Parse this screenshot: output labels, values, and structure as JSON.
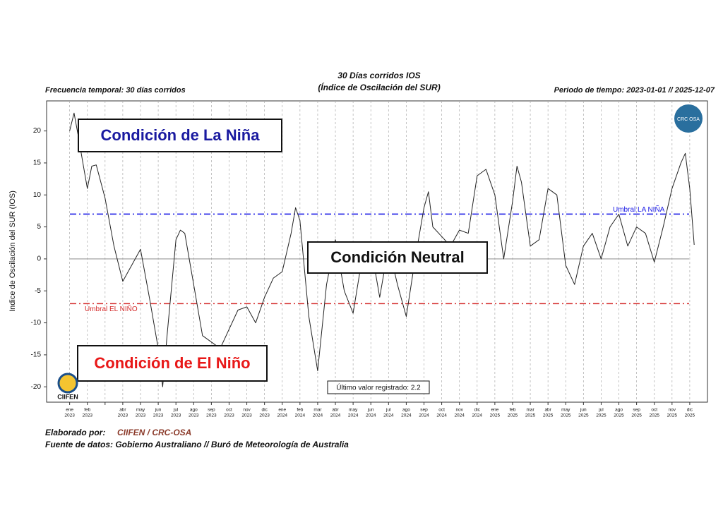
{
  "chart_data": {
    "type": "line",
    "title": "30 Días corridos IOS",
    "subtitle": "(Índice de Oscilación del SUR)",
    "left_note": "Frecuencia temporal: 30 días corridos",
    "right_note": "Periodo de tiempo: 2023-01-01 // 2025-12-07",
    "y_label": "Indice de Oscilación del SUR (IOS)",
    "ylim": [
      -22.4,
      24.7
    ],
    "yticks": [
      -20,
      -15,
      -10,
      -5,
      0,
      5,
      10,
      15,
      20
    ],
    "xlim": [
      -1.3,
      36.0
    ],
    "xticks": [
      {
        "value": 0,
        "label": [
          "ene",
          "2023"
        ]
      },
      {
        "value": 1,
        "label": [
          "feb",
          "2023"
        ]
      },
      {
        "value": 2,
        "label": null
      },
      {
        "value": 3,
        "label": [
          "abr",
          "2023"
        ]
      },
      {
        "value": 4,
        "label": [
          "may",
          "2023"
        ]
      },
      {
        "value": 5,
        "label": [
          "jun",
          "2023"
        ]
      },
      {
        "value": 6,
        "label": [
          "jul",
          "2023"
        ]
      },
      {
        "value": 7,
        "label": [
          "ago",
          "2023"
        ]
      },
      {
        "value": 8,
        "label": [
          "sep",
          "2023"
        ]
      },
      {
        "value": 9,
        "label": [
          "oct",
          "2023"
        ]
      },
      {
        "value": 10,
        "label": [
          "nov",
          "2023"
        ]
      },
      {
        "value": 11,
        "label": [
          "dic",
          "2023"
        ]
      },
      {
        "value": 12,
        "label": [
          "ene",
          "2024"
        ]
      },
      {
        "value": 13,
        "label": [
          "feb",
          "2024"
        ]
      },
      {
        "value": 14,
        "label": [
          "mar",
          "2024"
        ]
      },
      {
        "value": 15,
        "label": [
          "abr",
          "2024"
        ]
      },
      {
        "value": 16,
        "label": [
          "may",
          "2024"
        ]
      },
      {
        "value": 17,
        "label": [
          "jun",
          "2024"
        ]
      },
      {
        "value": 18,
        "label": [
          "jul",
          "2024"
        ]
      },
      {
        "value": 19,
        "label": [
          "ago",
          "2024"
        ]
      },
      {
        "value": 20,
        "label": [
          "sep",
          "2024"
        ]
      },
      {
        "value": 21,
        "label": [
          "oct",
          "2024"
        ]
      },
      {
        "value": 22,
        "label": [
          "nov",
          "2024"
        ]
      },
      {
        "value": 23,
        "label": [
          "dic",
          "2024"
        ]
      },
      {
        "value": 24,
        "label": [
          "ene",
          "2025"
        ]
      },
      {
        "value": 25,
        "label": [
          "feb",
          "2025"
        ]
      },
      {
        "value": 26,
        "label": [
          "mar",
          "2025"
        ]
      },
      {
        "value": 27,
        "label": [
          "abr",
          "2025"
        ]
      },
      {
        "value": 28,
        "label": [
          "may",
          "2025"
        ]
      },
      {
        "value": 29,
        "label": [
          "jun",
          "2025"
        ]
      },
      {
        "value": 30,
        "label": [
          "jul",
          "2025"
        ]
      },
      {
        "value": 31,
        "label": [
          "ago",
          "2025"
        ]
      },
      {
        "value": 32,
        "label": [
          "sep",
          "2025"
        ]
      },
      {
        "value": 33,
        "label": [
          "oct",
          "2025"
        ]
      },
      {
        "value": 34,
        "label": [
          "nov",
          "2025"
        ]
      },
      {
        "value": 35,
        "label": [
          "dic",
          "2025"
        ]
      }
    ],
    "series": [
      {
        "color": "#222222",
        "x": [
          0,
          0.25,
          0.5,
          0.75,
          1,
          1.25,
          1.5,
          2,
          2.5,
          3,
          3.5,
          4,
          4.5,
          5,
          5.25,
          5.5,
          6,
          6.25,
          6.5,
          7,
          7.5,
          8,
          8.5,
          9,
          9.5,
          10,
          10.5,
          11,
          11.5,
          12,
          12.5,
          12.75,
          13,
          13.5,
          14,
          14.5,
          15,
          15.5,
          16,
          16.5,
          17,
          17.5,
          18,
          18.5,
          19,
          19.5,
          20,
          20.25,
          20.5,
          21,
          21.5,
          22,
          22.5,
          23,
          23.5,
          24,
          24.5,
          25,
          25.25,
          25.5,
          26,
          26.5,
          27,
          27.5,
          28,
          28.5,
          29,
          29.5,
          30,
          30.5,
          31,
          31.5,
          32,
          32.5,
          33,
          33.5,
          34,
          34.5,
          34.75,
          35,
          35.25
        ],
        "values": [
          20,
          22.8,
          19,
          15,
          11,
          14.5,
          14.7,
          9.5,
          2,
          -3.5,
          -1,
          1.5,
          -6,
          -14,
          -20,
          -12,
          3,
          4.5,
          4,
          -4,
          -12,
          -13,
          -14,
          -11,
          -8,
          -7.5,
          -10,
          -6,
          -3,
          -2,
          4,
          8,
          6,
          -9,
          -17.5,
          -4,
          3,
          -5,
          -8.5,
          0,
          2,
          -6,
          2,
          -4,
          -9,
          0,
          8,
          10.5,
          5,
          3.5,
          2,
          4.5,
          4,
          13,
          14,
          10,
          0,
          9,
          14.5,
          12,
          2,
          3,
          11,
          10,
          -1,
          -4,
          2,
          4,
          0,
          5,
          7,
          2,
          5,
          4,
          -0.5,
          5,
          11,
          15,
          16.5,
          11,
          2.2
        ]
      }
    ],
    "thresholds": [
      {
        "label": "Umbral LA NIÑA",
        "value": 7,
        "color": "#1a1ae6"
      },
      {
        "label": "Umbral EL NIÑO",
        "value": -7,
        "color": "#d42a2a"
      }
    ],
    "annotations": [
      {
        "text": "Condición de La Niña",
        "color": "#1a1aa0"
      },
      {
        "text": "Condición Neutral",
        "color": "#111111"
      },
      {
        "text": "Condición de El Niño",
        "color": "#e81818"
      },
      {
        "text": "Último valor registrado: 2.2",
        "color": "#111111"
      }
    ],
    "logos": [
      "CRC OSA",
      "CIIFEN"
    ],
    "credit_label": "Elaborado por:",
    "credit": "CIIFEN / CRC-OSA",
    "source": "Fuente de datos: Gobierno Australiano // Buró de Meteorología de Australia"
  }
}
